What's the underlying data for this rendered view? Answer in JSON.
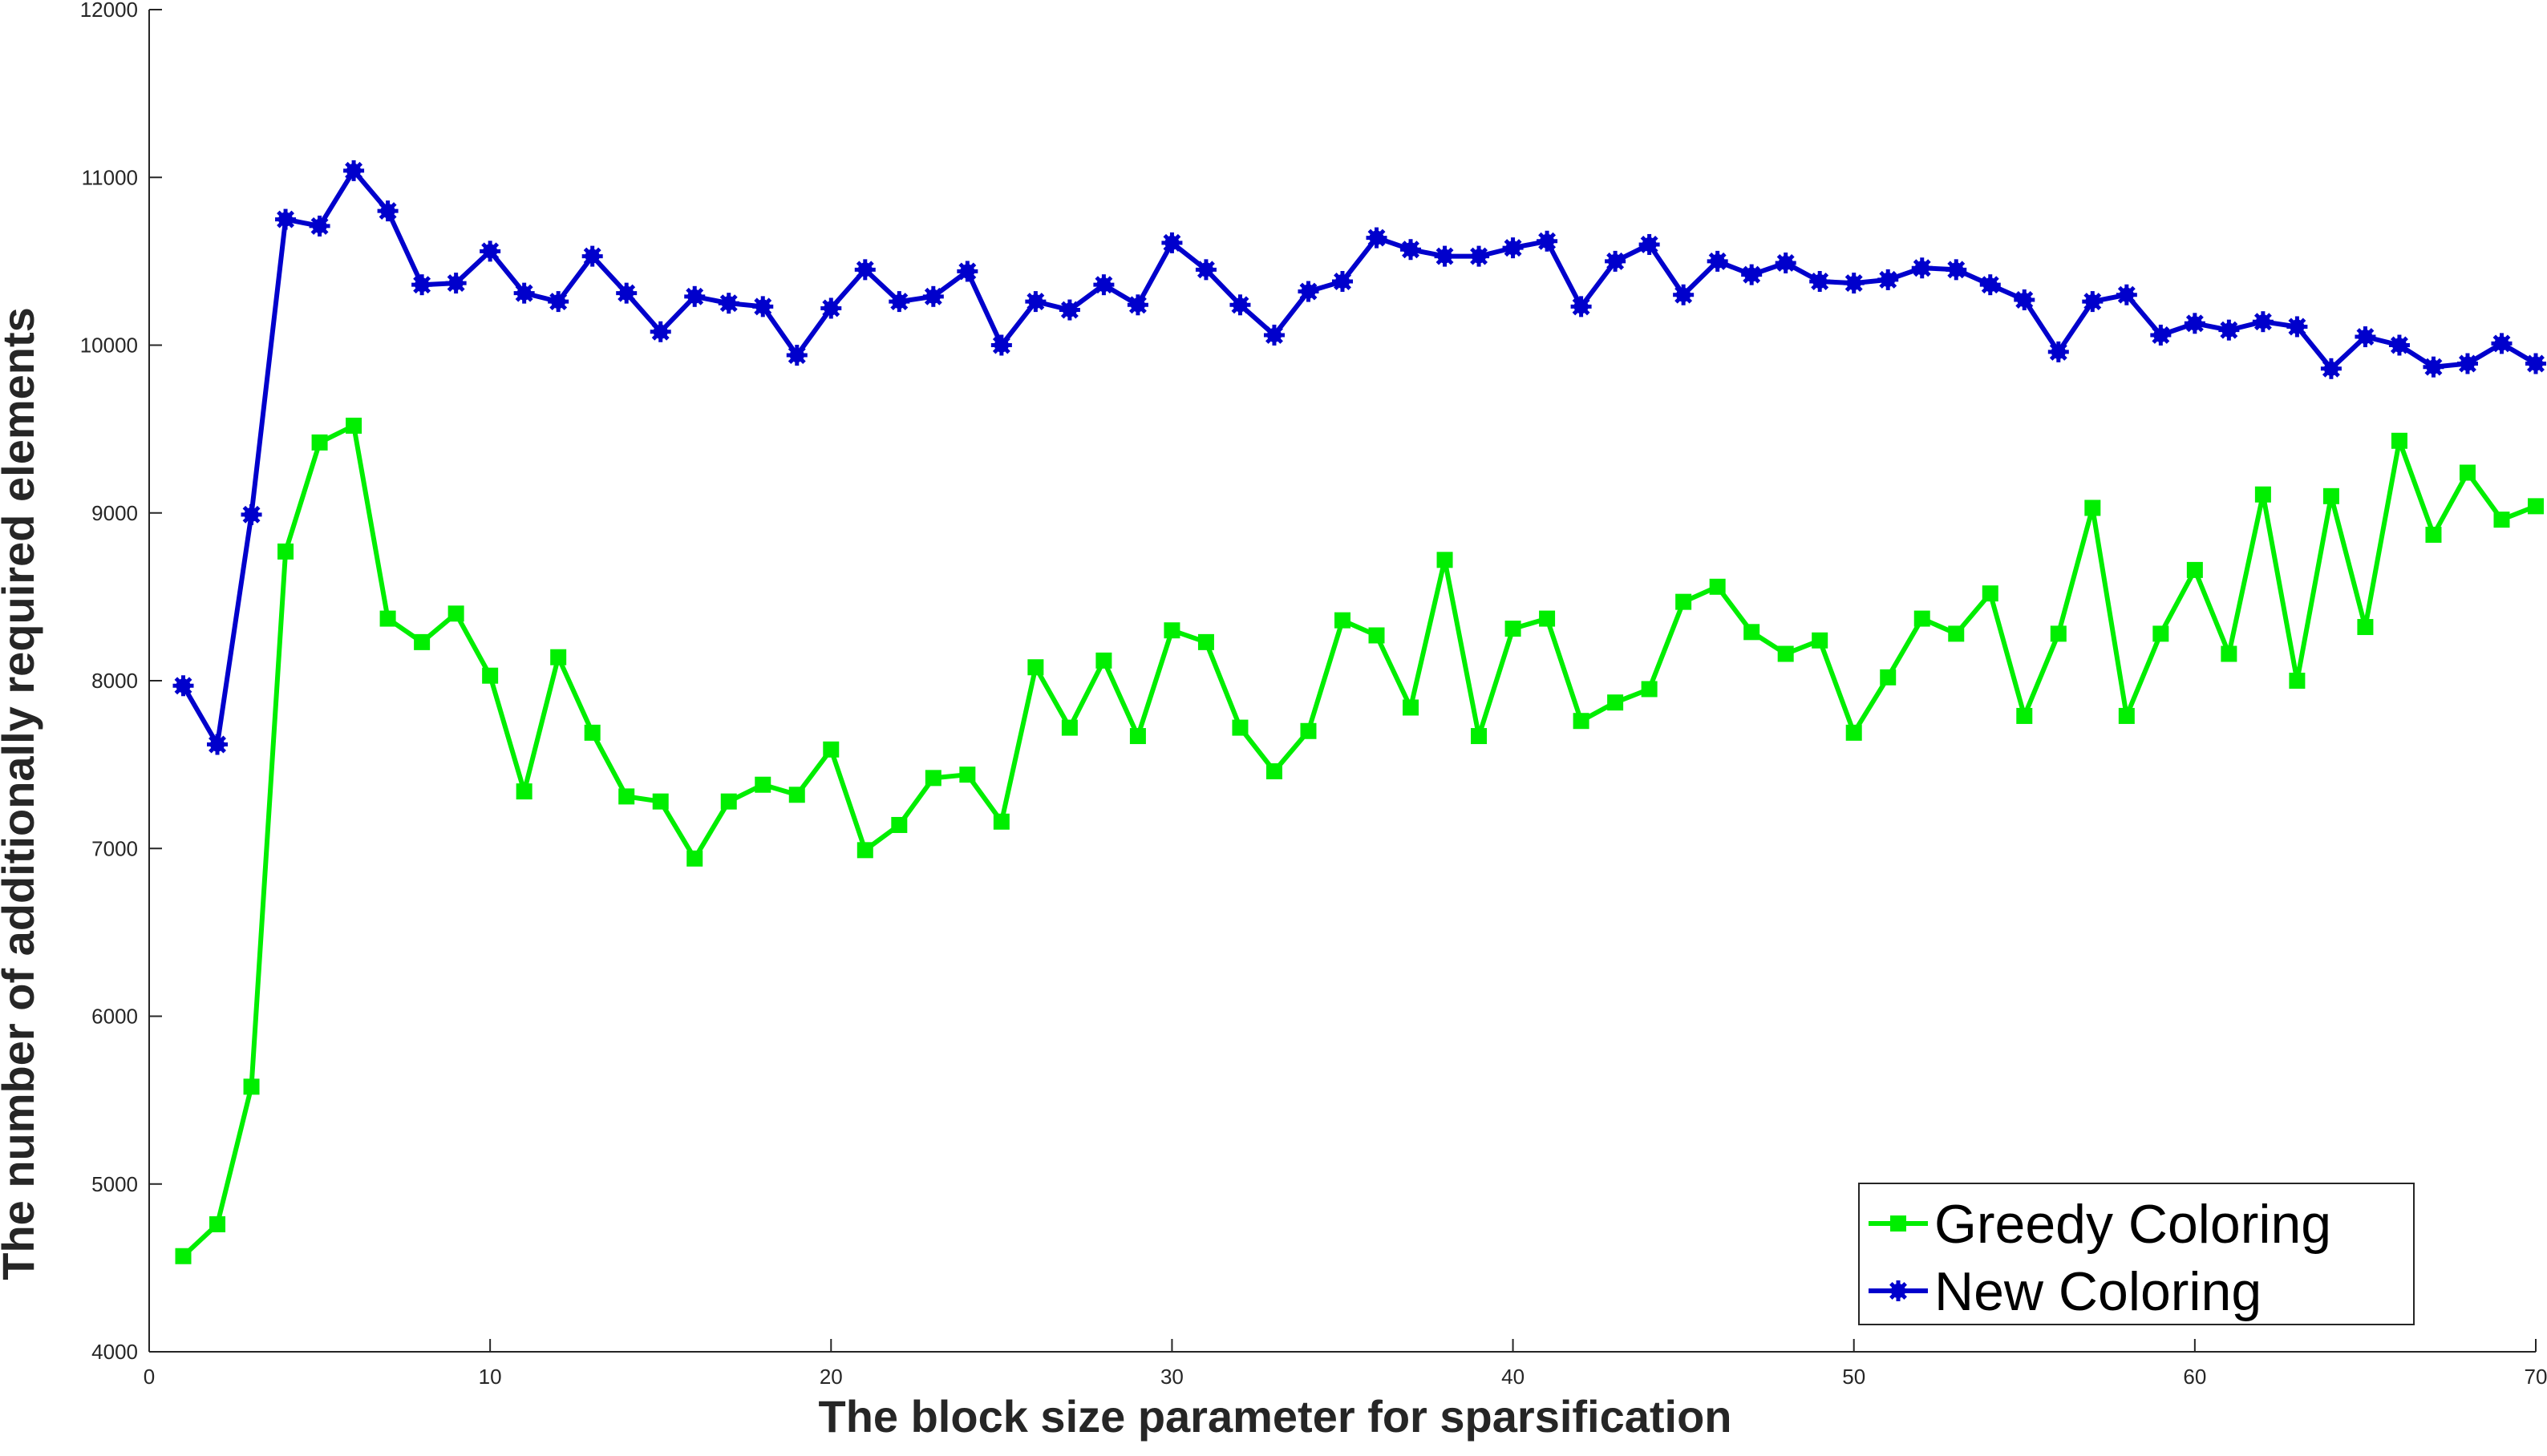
{
  "chart_data": {
    "type": "line",
    "title": "",
    "xlabel": "The block size parameter for sparsification",
    "ylabel": "The number of additionally required elements",
    "xlim": [
      0,
      70
    ],
    "ylim": [
      4000,
      12000
    ],
    "xticks": [
      0,
      10,
      20,
      30,
      40,
      50,
      60,
      70
    ],
    "yticks": [
      4000,
      5000,
      6000,
      7000,
      8000,
      9000,
      10000,
      11000,
      12000
    ],
    "grid": false,
    "legend_position": "bottom-right",
    "x": [
      1,
      2,
      3,
      4,
      5,
      6,
      7,
      8,
      9,
      10,
      11,
      12,
      13,
      14,
      15,
      16,
      17,
      18,
      19,
      20,
      21,
      22,
      23,
      24,
      25,
      26,
      27,
      28,
      29,
      30,
      31,
      32,
      33,
      34,
      35,
      36,
      37,
      38,
      39,
      40,
      41,
      42,
      43,
      44,
      45,
      46,
      47,
      48,
      49,
      50,
      51,
      52,
      53,
      54,
      55,
      56,
      57,
      58,
      59,
      60,
      61,
      62,
      63,
      64,
      65,
      66,
      67,
      68,
      69,
      70
    ],
    "series": [
      {
        "name": "Greedy Coloring",
        "color": "#00ee00",
        "marker": "square",
        "values": [
          4570,
          4760,
          5580,
          8770,
          9420,
          9520,
          8370,
          8230,
          8400,
          8030,
          7340,
          8140,
          7690,
          7310,
          7280,
          6940,
          7280,
          7380,
          7320,
          7590,
          6990,
          7140,
          7420,
          7440,
          7160,
          8080,
          7720,
          8120,
          7670,
          8300,
          8230,
          7720,
          7460,
          7700,
          8360,
          8270,
          7840,
          8720,
          7670,
          8310,
          8370,
          7760,
          7870,
          7950,
          8470,
          8560,
          8290,
          8160,
          8240,
          7690,
          8020,
          8370,
          8280,
          8520,
          7790,
          8280,
          9030,
          7790,
          8280,
          8660,
          8160,
          9110,
          8000,
          9100,
          8320,
          9430,
          8870,
          9240,
          8960,
          9040
        ]
      },
      {
        "name": "New Coloring",
        "color": "#0000cc",
        "marker": "star",
        "values": [
          7970,
          7620,
          8990,
          10750,
          10710,
          11040,
          10800,
          10360,
          10370,
          10560,
          10310,
          10260,
          10530,
          10310,
          10080,
          10290,
          10250,
          10230,
          9940,
          10220,
          10450,
          10260,
          10290,
          10440,
          10000,
          10260,
          10210,
          10360,
          10240,
          10610,
          10450,
          10240,
          10060,
          10320,
          10380,
          10640,
          10570,
          10530,
          10530,
          10580,
          10620,
          10230,
          10500,
          10600,
          10300,
          10500,
          10420,
          10490,
          10380,
          10370,
          10390,
          10460,
          10450,
          10360,
          10270,
          9960,
          10260,
          10300,
          10060,
          10130,
          10090,
          10140,
          10110,
          9860,
          10050,
          10000,
          9870,
          9890,
          10010,
          9890
        ]
      }
    ]
  }
}
